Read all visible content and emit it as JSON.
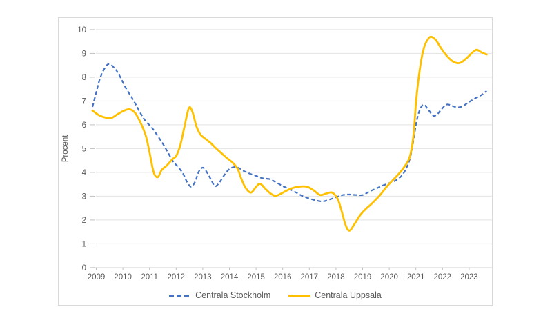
{
  "figure": {
    "background": "#ffffff",
    "border_color": "#d9d9d9",
    "gridline_color": "#e3e3e3",
    "axis_line_color": "#d9d9d9",
    "tick_color": "#bfbfbf",
    "text_color": "#595959"
  },
  "legend": {
    "position": "bottom-center",
    "items": [
      {
        "label": "Centrala Stockholm",
        "color": "#4472c4",
        "style": "dashed"
      },
      {
        "label": "Centrala Uppsala",
        "color": "#ffc000",
        "style": "solid"
      }
    ]
  },
  "chart_data": {
    "type": "line",
    "title": "",
    "xlabel": "",
    "ylabel": "Procent",
    "ylim": [
      0,
      10
    ],
    "xlim": [
      2009.0,
      2023.95
    ],
    "grid": "horizontal",
    "y_ticks": [
      "0",
      "1",
      "2",
      "3",
      "4",
      "5",
      "6",
      "7",
      "8",
      "9",
      "10"
    ],
    "x_tick_labels": [
      "2009",
      "2010",
      "2011",
      "2012",
      "2013",
      "2014",
      "2015",
      "2016",
      "2017",
      "2018",
      "2019",
      "2020",
      "2021",
      "2022",
      "2023"
    ],
    "x_unit": "year (decimal = year + fraction)",
    "y_unit": "procent",
    "series": [
      {
        "name": "Centrala Stockholm",
        "color": "#4472c4",
        "style": "dashed",
        "points": [
          [
            2009.0,
            6.75
          ],
          [
            2009.15,
            7.4
          ],
          [
            2009.3,
            8.0
          ],
          [
            2009.5,
            8.45
          ],
          [
            2009.65,
            8.55
          ],
          [
            2009.85,
            8.35
          ],
          [
            2010.0,
            8.1
          ],
          [
            2010.25,
            7.55
          ],
          [
            2010.5,
            7.1
          ],
          [
            2010.7,
            6.7
          ],
          [
            2010.85,
            6.4
          ],
          [
            2011.0,
            6.15
          ],
          [
            2011.25,
            5.85
          ],
          [
            2011.5,
            5.45
          ],
          [
            2011.7,
            5.1
          ],
          [
            2011.9,
            4.7
          ],
          [
            2012.05,
            4.42
          ],
          [
            2012.2,
            4.25
          ],
          [
            2012.4,
            3.95
          ],
          [
            2012.55,
            3.6
          ],
          [
            2012.7,
            3.4
          ],
          [
            2012.85,
            3.6
          ],
          [
            2013.0,
            4.05
          ],
          [
            2013.15,
            4.2
          ],
          [
            2013.3,
            4.0
          ],
          [
            2013.45,
            3.7
          ],
          [
            2013.6,
            3.42
          ],
          [
            2013.75,
            3.55
          ],
          [
            2013.9,
            3.8
          ],
          [
            2014.1,
            4.1
          ],
          [
            2014.3,
            4.22
          ],
          [
            2014.5,
            4.18
          ],
          [
            2014.7,
            4.05
          ],
          [
            2014.9,
            3.95
          ],
          [
            2015.15,
            3.85
          ],
          [
            2015.4,
            3.75
          ],
          [
            2015.65,
            3.72
          ],
          [
            2015.9,
            3.58
          ],
          [
            2016.15,
            3.42
          ],
          [
            2016.4,
            3.3
          ],
          [
            2016.65,
            3.15
          ],
          [
            2016.9,
            3.0
          ],
          [
            2017.15,
            2.9
          ],
          [
            2017.4,
            2.82
          ],
          [
            2017.65,
            2.78
          ],
          [
            2017.9,
            2.86
          ],
          [
            2018.15,
            2.96
          ],
          [
            2018.4,
            3.05
          ],
          [
            2018.65,
            3.07
          ],
          [
            2018.9,
            3.05
          ],
          [
            2019.15,
            3.05
          ],
          [
            2019.4,
            3.2
          ],
          [
            2019.65,
            3.32
          ],
          [
            2019.9,
            3.45
          ],
          [
            2020.15,
            3.55
          ],
          [
            2020.4,
            3.67
          ],
          [
            2020.6,
            3.85
          ],
          [
            2020.75,
            4.1
          ],
          [
            2020.9,
            4.5
          ],
          [
            2021.0,
            5.0
          ],
          [
            2021.1,
            5.7
          ],
          [
            2021.2,
            6.3
          ],
          [
            2021.32,
            6.7
          ],
          [
            2021.45,
            6.85
          ],
          [
            2021.6,
            6.65
          ],
          [
            2021.8,
            6.38
          ],
          [
            2021.95,
            6.45
          ],
          [
            2022.1,
            6.65
          ],
          [
            2022.3,
            6.85
          ],
          [
            2022.5,
            6.8
          ],
          [
            2022.7,
            6.73
          ],
          [
            2022.9,
            6.78
          ],
          [
            2023.1,
            6.93
          ],
          [
            2023.35,
            7.1
          ],
          [
            2023.6,
            7.25
          ],
          [
            2023.8,
            7.42
          ]
        ]
      },
      {
        "name": "Centrala Uppsala",
        "color": "#ffc000",
        "style": "solid",
        "points": [
          [
            2009.0,
            6.6
          ],
          [
            2009.25,
            6.4
          ],
          [
            2009.5,
            6.3
          ],
          [
            2009.7,
            6.28
          ],
          [
            2009.95,
            6.45
          ],
          [
            2010.2,
            6.6
          ],
          [
            2010.4,
            6.65
          ],
          [
            2010.6,
            6.5
          ],
          [
            2010.8,
            6.1
          ],
          [
            2011.0,
            5.55
          ],
          [
            2011.15,
            4.8
          ],
          [
            2011.3,
            4.0
          ],
          [
            2011.45,
            3.8
          ],
          [
            2011.6,
            4.1
          ],
          [
            2011.8,
            4.3
          ],
          [
            2012.0,
            4.55
          ],
          [
            2012.15,
            4.7
          ],
          [
            2012.3,
            5.15
          ],
          [
            2012.45,
            5.9
          ],
          [
            2012.62,
            6.7
          ],
          [
            2012.75,
            6.55
          ],
          [
            2012.9,
            5.95
          ],
          [
            2013.05,
            5.6
          ],
          [
            2013.25,
            5.4
          ],
          [
            2013.45,
            5.22
          ],
          [
            2013.65,
            5.0
          ],
          [
            2013.85,
            4.8
          ],
          [
            2014.05,
            4.6
          ],
          [
            2014.25,
            4.42
          ],
          [
            2014.45,
            4.15
          ],
          [
            2014.6,
            3.7
          ],
          [
            2014.75,
            3.35
          ],
          [
            2014.95,
            3.15
          ],
          [
            2015.15,
            3.4
          ],
          [
            2015.3,
            3.52
          ],
          [
            2015.5,
            3.3
          ],
          [
            2015.7,
            3.1
          ],
          [
            2015.9,
            3.02
          ],
          [
            2016.15,
            3.15
          ],
          [
            2016.45,
            3.32
          ],
          [
            2016.75,
            3.4
          ],
          [
            2017.05,
            3.4
          ],
          [
            2017.3,
            3.25
          ],
          [
            2017.55,
            3.05
          ],
          [
            2017.8,
            3.12
          ],
          [
            2018.0,
            3.15
          ],
          [
            2018.2,
            2.9
          ],
          [
            2018.35,
            2.4
          ],
          [
            2018.5,
            1.8
          ],
          [
            2018.65,
            1.55
          ],
          [
            2018.85,
            1.85
          ],
          [
            2019.05,
            2.2
          ],
          [
            2019.25,
            2.45
          ],
          [
            2019.5,
            2.7
          ],
          [
            2019.8,
            3.05
          ],
          [
            2020.05,
            3.4
          ],
          [
            2020.3,
            3.7
          ],
          [
            2020.55,
            4.0
          ],
          [
            2020.75,
            4.3
          ],
          [
            2020.9,
            4.6
          ],
          [
            2021.0,
            5.1
          ],
          [
            2021.08,
            5.9
          ],
          [
            2021.16,
            7.1
          ],
          [
            2021.3,
            8.4
          ],
          [
            2021.45,
            9.25
          ],
          [
            2021.6,
            9.6
          ],
          [
            2021.72,
            9.7
          ],
          [
            2021.9,
            9.55
          ],
          [
            2022.1,
            9.2
          ],
          [
            2022.3,
            8.9
          ],
          [
            2022.55,
            8.65
          ],
          [
            2022.8,
            8.6
          ],
          [
            2023.05,
            8.8
          ],
          [
            2023.25,
            9.02
          ],
          [
            2023.42,
            9.15
          ],
          [
            2023.6,
            9.05
          ],
          [
            2023.8,
            8.95
          ]
        ]
      }
    ]
  }
}
